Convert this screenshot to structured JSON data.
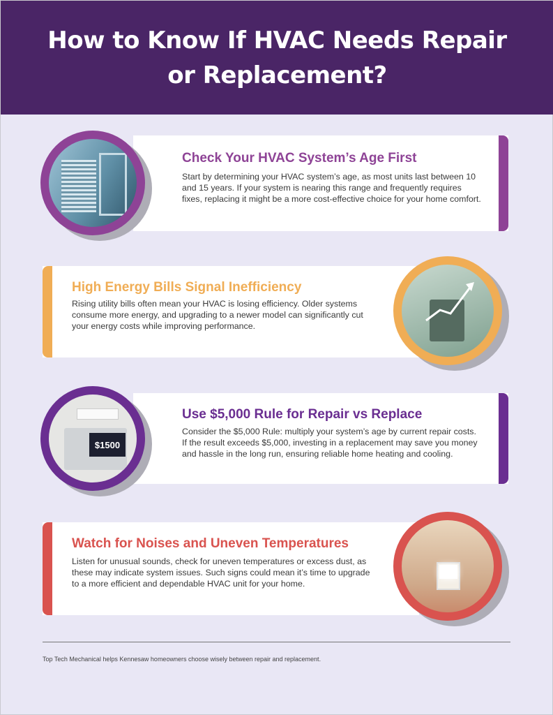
{
  "header": {
    "title": "How to Know If HVAC Needs Repair or Replacement?"
  },
  "colors": {
    "header": "#4a2566",
    "background": "#e9e7f5",
    "card1": "#8e4396",
    "card2": "#f0ad55",
    "card3": "#6a2e91",
    "card4": "#d9534f"
  },
  "sections": [
    {
      "title": "Check Your HVAC System’s Age First",
      "body": "Start by determining your HVAC system’s age, as most units last between 10 and 15 years. If your system is nearing this range and frequently requires fixes, replacing it might be a more cost-effective choice for your home comfort."
    },
    {
      "title": "High Energy Bills Signal Inefficiency",
      "body": "Rising utility bills often mean your HVAC is losing efficiency. Older systems consume more energy, and upgrading to a newer model can significantly cut your energy costs while improving performance."
    },
    {
      "title": "Use $5,000 Rule for Repair vs Replace",
      "body": "Consider the $5,000 Rule: multiply your system’s age by current repair costs. If the result exceeds $5,000, investing in a replacement may save you money and hassle in the long run, ensuring reliable home heating and cooling.",
      "image_price": "$1500"
    },
    {
      "title": "Watch for Noises and Uneven Temperatures",
      "body": "Listen for unusual sounds, check for uneven temperatures or excess dust, as these may indicate system issues. Such signs could mean it’s time to upgrade to a more efficient and dependable HVAC unit for your home."
    }
  ],
  "footer": {
    "text": "Top Tech Mechanical helps Kennesaw homeowners choose wisely between repair and replacement."
  }
}
